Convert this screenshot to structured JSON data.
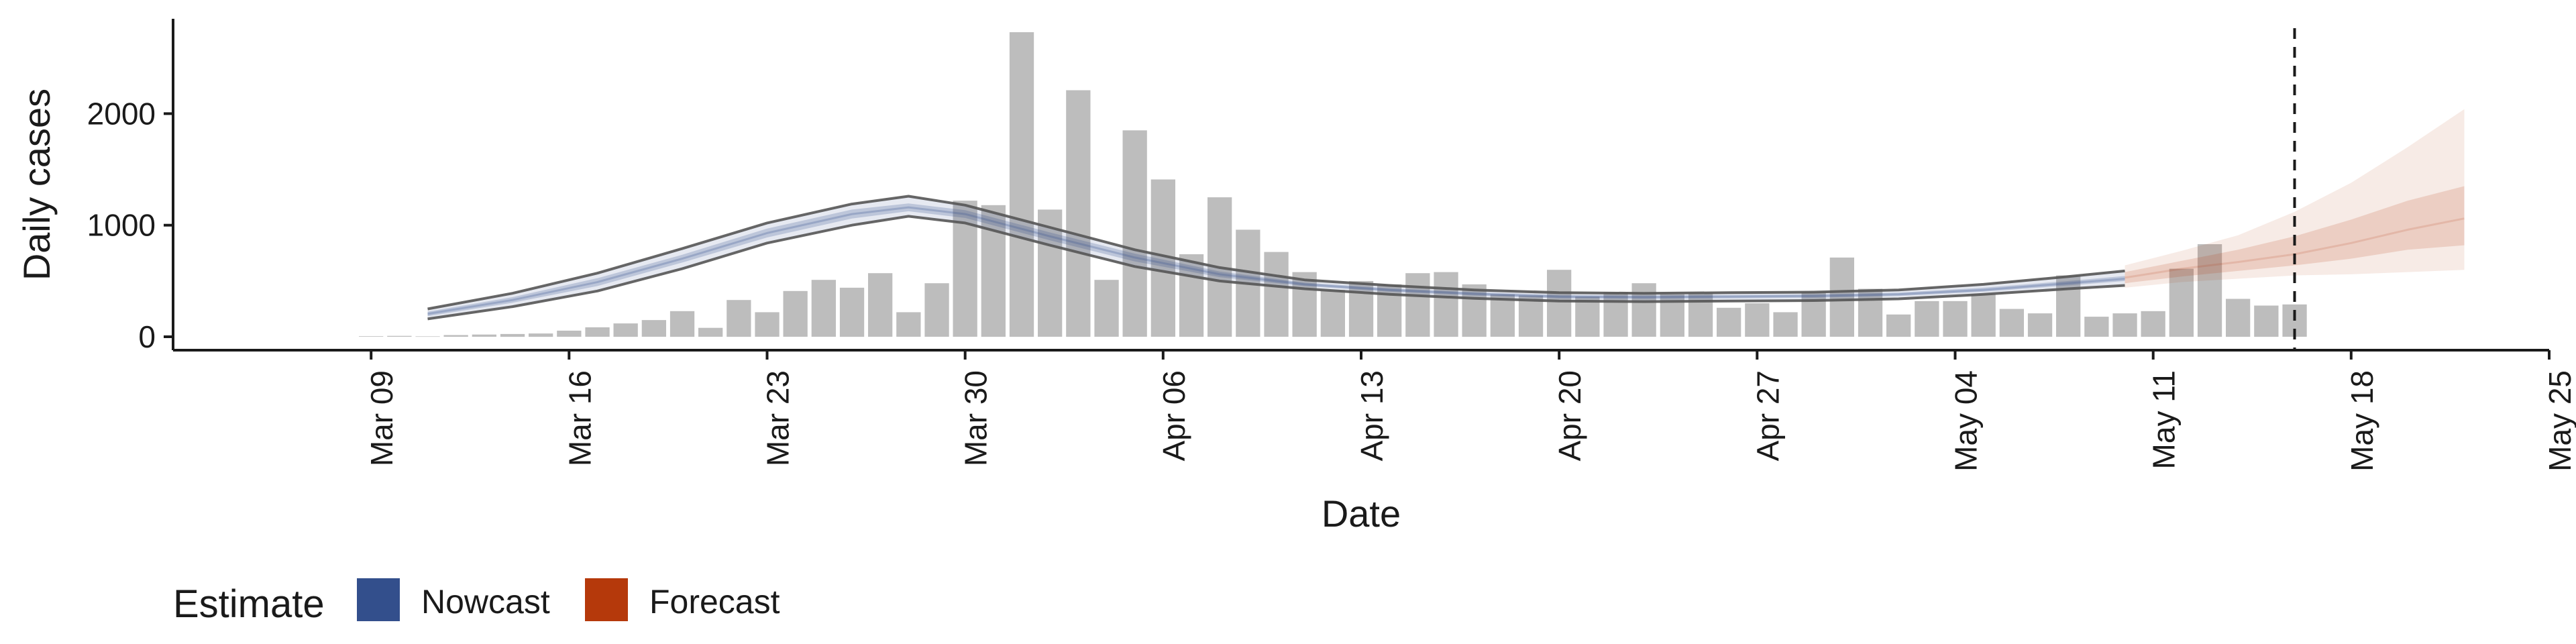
{
  "chart_data": {
    "type": "bar",
    "xlabel": "Date",
    "ylabel": "Daily cases",
    "ylim": [
      -120,
      2850
    ],
    "yticks": [
      0,
      1000,
      2000
    ],
    "ytick_labels": [
      "0",
      "1000",
      "2000"
    ],
    "x_domain": [
      "2020-03-02",
      "2020-05-25"
    ],
    "xticks": [
      "2020-03-09",
      "2020-03-16",
      "2020-03-23",
      "2020-03-30",
      "2020-04-06",
      "2020-04-13",
      "2020-04-20",
      "2020-04-27",
      "2020-05-04",
      "2020-05-11",
      "2020-05-18",
      "2020-05-25"
    ],
    "xtick_labels": [
      "Mar 09",
      "Mar 16",
      "Mar 23",
      "Mar 30",
      "Apr 06",
      "Apr 13",
      "Apr 20",
      "Apr 27",
      "May 04",
      "May 11",
      "May 18",
      "May 25"
    ],
    "grid": false,
    "bar_color": "#bdbdbd",
    "reported_cases": {
      "dates": [
        "2020-03-09",
        "2020-03-10",
        "2020-03-11",
        "2020-03-12",
        "2020-03-13",
        "2020-03-14",
        "2020-03-15",
        "2020-03-16",
        "2020-03-17",
        "2020-03-18",
        "2020-03-19",
        "2020-03-20",
        "2020-03-21",
        "2020-03-22",
        "2020-03-23",
        "2020-03-24",
        "2020-03-25",
        "2020-03-26",
        "2020-03-27",
        "2020-03-28",
        "2020-03-29",
        "2020-03-30",
        "2020-03-31",
        "2020-04-01",
        "2020-04-02",
        "2020-04-03",
        "2020-04-04",
        "2020-04-05",
        "2020-04-06",
        "2020-04-07",
        "2020-04-08",
        "2020-04-09",
        "2020-04-10",
        "2020-04-11",
        "2020-04-12",
        "2020-04-13",
        "2020-04-14",
        "2020-04-15",
        "2020-04-16",
        "2020-04-17",
        "2020-04-18",
        "2020-04-19",
        "2020-04-20",
        "2020-04-21",
        "2020-04-22",
        "2020-04-23",
        "2020-04-24",
        "2020-04-25",
        "2020-04-26",
        "2020-04-27",
        "2020-04-28",
        "2020-04-29",
        "2020-04-30",
        "2020-05-01",
        "2020-05-02",
        "2020-05-03",
        "2020-05-04",
        "2020-05-05",
        "2020-05-06",
        "2020-05-07",
        "2020-05-08",
        "2020-05-09",
        "2020-05-10",
        "2020-05-11",
        "2020-05-12",
        "2020-05-13",
        "2020-05-14",
        "2020-05-15",
        "2020-05-16"
      ],
      "values": [
        5,
        8,
        4,
        15,
        20,
        25,
        30,
        55,
        85,
        120,
        150,
        230,
        80,
        330,
        220,
        410,
        510,
        440,
        570,
        220,
        480,
        1220,
        1180,
        2730,
        1140,
        2210,
        510,
        1850,
        1410,
        740,
        1250,
        960,
        760,
        580,
        420,
        500,
        470,
        570,
        580,
        470,
        380,
        370,
        600,
        360,
        400,
        480,
        380,
        390,
        260,
        300,
        220,
        400,
        710,
        430,
        200,
        320,
        320,
        380,
        250,
        210,
        550,
        180,
        210,
        230,
        610,
        830,
        340,
        280,
        290
      ]
    },
    "nowcast": {
      "name": "Nowcast",
      "color": "#2f4b8a",
      "dates": [
        "2020-03-11",
        "2020-03-14",
        "2020-03-17",
        "2020-03-20",
        "2020-03-23",
        "2020-03-26",
        "2020-03-28",
        "2020-03-30",
        "2020-04-02",
        "2020-04-05",
        "2020-04-08",
        "2020-04-11",
        "2020-04-14",
        "2020-04-17",
        "2020-04-20",
        "2020-04-23",
        "2020-04-26",
        "2020-04-29",
        "2020-05-02",
        "2020-05-05",
        "2020-05-08",
        "2020-05-10"
      ],
      "median": [
        205,
        330,
        490,
        700,
        930,
        1100,
        1160,
        1100,
        900,
        710,
        560,
        470,
        420,
        385,
        360,
        355,
        360,
        365,
        380,
        420,
        480,
        520
      ],
      "lower_outer": [
        160,
        270,
        410,
        610,
        840,
        1000,
        1080,
        1020,
        820,
        630,
        500,
        430,
        380,
        345,
        320,
        315,
        320,
        325,
        340,
        380,
        430,
        460
      ],
      "upper_outer": [
        250,
        390,
        570,
        790,
        1020,
        1190,
        1260,
        1180,
        980,
        780,
        620,
        510,
        460,
        420,
        395,
        390,
        395,
        400,
        420,
        470,
        540,
        590
      ],
      "lower_inner": [
        185,
        305,
        455,
        665,
        890,
        1060,
        1125,
        1065,
        865,
        675,
        535,
        455,
        405,
        370,
        345,
        340,
        345,
        350,
        365,
        405,
        460,
        500
      ],
      "upper_inner": [
        225,
        355,
        525,
        735,
        970,
        1140,
        1195,
        1135,
        935,
        745,
        585,
        485,
        435,
        400,
        375,
        370,
        375,
        380,
        395,
        440,
        500,
        545
      ]
    },
    "forecast": {
      "name": "Forecast",
      "color": "#b5390b",
      "dates": [
        "2020-05-10",
        "2020-05-12",
        "2020-05-14",
        "2020-05-16",
        "2020-05-18",
        "2020-05-20",
        "2020-05-22"
      ],
      "median": [
        530,
        610,
        670,
        740,
        840,
        960,
        1060
      ],
      "lower_outer": [
        440,
        490,
        520,
        550,
        560,
        580,
        600
      ],
      "upper_outer": [
        640,
        770,
        910,
        1120,
        1380,
        1700,
        2040
      ],
      "lower_inner": [
        480,
        540,
        590,
        640,
        700,
        780,
        820
      ],
      "upper_inner": [
        580,
        680,
        780,
        900,
        1050,
        1220,
        1350
      ]
    },
    "vline_date": "2020-05-16",
    "legend": {
      "title": "Estimate",
      "placement": "bottom-left",
      "items": [
        {
          "label": "Nowcast",
          "color": "#2f4b8a"
        },
        {
          "label": "Forecast",
          "color": "#b5390b"
        }
      ]
    }
  }
}
